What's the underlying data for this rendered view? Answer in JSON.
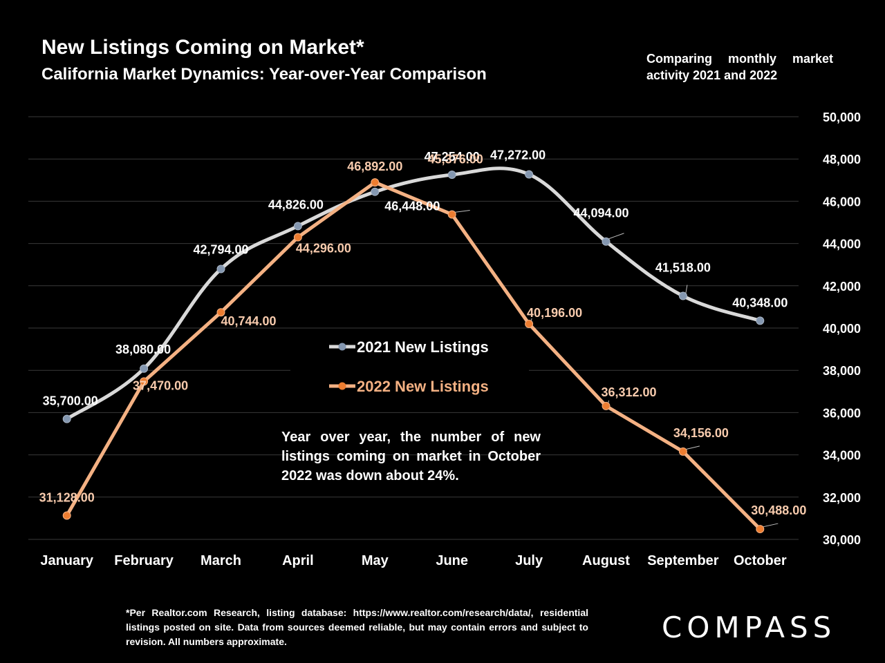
{
  "header": {
    "title": "New Listings Coming on Market*",
    "subtitle": "California Market Dynamics: Year-over-Year Comparison",
    "side_note": "Comparing monthly market activity 2021 and 2022"
  },
  "callout": "Year over year, the number of new listings coming on market in October 2022 was down about 24%.",
  "footnote": "*Per Realtor.com Research, listing database: https://www.realtor.com/research/data/, residential listings posted on site. Data from sources deemed reliable, but may contain errors and subject to revision. All numbers approximate.",
  "logo": "COMPASS",
  "colors": {
    "series_2021": "#d9d9d9",
    "series_2022": "#f4b183",
    "marker_2021": "#8497b0",
    "marker_2022": "#ed7d31",
    "label_2022": "#f8cbad"
  },
  "chart_data": {
    "type": "line",
    "categories": [
      "January",
      "February",
      "March",
      "April",
      "May",
      "June",
      "July",
      "August",
      "September",
      "October"
    ],
    "ylim": [
      30000,
      50000
    ],
    "y_ticks": [
      "30,000",
      "32,000",
      "34,000",
      "36,000",
      "38,000",
      "40,000",
      "42,000",
      "44,000",
      "46,000",
      "48,000",
      "50,000"
    ],
    "y_tick_values": [
      30000,
      32000,
      34000,
      36000,
      38000,
      40000,
      42000,
      44000,
      46000,
      48000,
      50000
    ],
    "grid": true,
    "legend_position": "center",
    "series": [
      {
        "name": "2021 New Listings",
        "values": [
          35700,
          38080,
          42794,
          44826,
          46448,
          47254,
          47272,
          44094,
          41518,
          40348
        ],
        "labels": [
          "35,700.00",
          "38,080.00",
          "42,794.00",
          "44,826.00",
          "46,448.00",
          "47,254.00",
          "47,272.00",
          "44,094.00",
          "41,518.00",
          "40,348.00"
        ]
      },
      {
        "name": "2022 New Listings",
        "values": [
          31128,
          37470,
          40744,
          44296,
          46892,
          45376,
          40196,
          36312,
          34156,
          30488
        ],
        "labels": [
          "31,128.00",
          "37,470.00",
          "40,744.00",
          "44,296.00",
          "46,892.00",
          "45,376.00",
          "40,196.00",
          "36,312.00",
          "34,156.00",
          "30,488.00"
        ]
      }
    ]
  }
}
